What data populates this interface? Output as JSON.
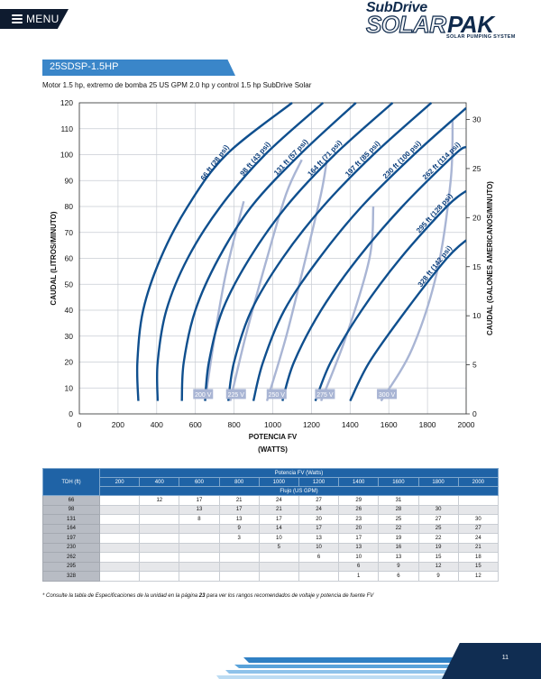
{
  "nav": {
    "menu_label": "MENU"
  },
  "brand": {
    "top": "SubDrive",
    "solar": "SOLAR",
    "pak": "PAK",
    "tagline": "SOLAR PUMPING SYSTEM"
  },
  "header": {
    "model": "25SDSP-1.5HP",
    "subtitle": "Motor 1.5 hp, extremo de bomba 25 US GPM 2.0 hp y control 1.5 hp SubDrive Solar"
  },
  "chart_data": {
    "type": "line",
    "xlabel_line1": "POTENCIA FV",
    "xlabel_line2": "(WATTS)",
    "ylabel": "CAUDAL (LITROS/MINUTO)",
    "y2label": "CAUDAL (GALONES AMERICANOS/MINUTO)",
    "xlim": [
      0,
      2000
    ],
    "ylim": [
      0,
      120
    ],
    "y2lim": [
      0,
      31.7
    ],
    "xticks": [
      "0",
      "200",
      "400",
      "600",
      "800",
      "1000",
      "1200",
      "1400",
      "1600",
      "1800",
      "2000"
    ],
    "yticks": [
      "0",
      "10",
      "20",
      "30",
      "40",
      "50",
      "60",
      "70",
      "80",
      "90",
      "100",
      "110",
      "120"
    ],
    "y2ticks": [
      "0",
      "5",
      "10",
      "15",
      "20",
      "25",
      "30"
    ],
    "series": [
      {
        "name": "66 ft (28 psi)",
        "points": [
          [
            305,
            5
          ],
          [
            300,
            20
          ],
          [
            330,
            40
          ],
          [
            420,
            60
          ],
          [
            560,
            80
          ],
          [
            760,
            100
          ],
          [
            1100,
            120
          ]
        ]
      },
      {
        "name": "98 ft (43 psi)",
        "points": [
          [
            405,
            5
          ],
          [
            405,
            20
          ],
          [
            450,
            40
          ],
          [
            560,
            60
          ],
          [
            730,
            80
          ],
          [
            960,
            100
          ],
          [
            1260,
            120
          ]
        ]
      },
      {
        "name": "131 ft (57 psi)",
        "points": [
          [
            530,
            5
          ],
          [
            540,
            20
          ],
          [
            600,
            40
          ],
          [
            720,
            60
          ],
          [
            890,
            80
          ],
          [
            1140,
            100
          ],
          [
            1430,
            120
          ]
        ]
      },
      {
        "name": "164 ft (71 psi)",
        "points": [
          [
            650,
            5
          ],
          [
            670,
            20
          ],
          [
            740,
            40
          ],
          [
            880,
            60
          ],
          [
            1070,
            80
          ],
          [
            1320,
            100
          ],
          [
            1620,
            120
          ]
        ]
      },
      {
        "name": "197 ft (85 psi)",
        "points": [
          [
            770,
            5
          ],
          [
            800,
            20
          ],
          [
            890,
            40
          ],
          [
            1050,
            60
          ],
          [
            1260,
            80
          ],
          [
            1520,
            100
          ],
          [
            1820,
            120
          ]
        ]
      },
      {
        "name": "230 ft (100 psi)",
        "points": [
          [
            900,
            5
          ],
          [
            950,
            20
          ],
          [
            1060,
            40
          ],
          [
            1240,
            60
          ],
          [
            1460,
            80
          ],
          [
            1730,
            100
          ],
          [
            2000,
            118
          ]
        ]
      },
      {
        "name": "262 ft (114 psi)",
        "points": [
          [
            1050,
            5
          ],
          [
            1110,
            20
          ],
          [
            1250,
            40
          ],
          [
            1440,
            60
          ],
          [
            1670,
            80
          ],
          [
            1940,
            100
          ],
          [
            2000,
            103
          ]
        ]
      },
      {
        "name": "295 ft (128 psi)",
        "points": [
          [
            1220,
            5
          ],
          [
            1300,
            20
          ],
          [
            1460,
            40
          ],
          [
            1660,
            60
          ],
          [
            1900,
            80
          ],
          [
            2000,
            86
          ]
        ]
      },
      {
        "name": "328 ft (142 psi)",
        "points": [
          [
            1400,
            5
          ],
          [
            1500,
            20
          ],
          [
            1690,
            40
          ],
          [
            1900,
            60
          ],
          [
            2000,
            67
          ]
        ]
      }
    ],
    "voltage_series": [
      {
        "name": "200 V",
        "points": [
          [
            650,
            5
          ],
          [
            700,
            30
          ],
          [
            760,
            55
          ],
          [
            850,
            82
          ]
        ]
      },
      {
        "name": "225 V",
        "points": [
          [
            780,
            5
          ],
          [
            860,
            30
          ],
          [
            970,
            60
          ],
          [
            1070,
            85
          ],
          [
            1150,
            98
          ]
        ]
      },
      {
        "name": "250 V",
        "points": [
          [
            970,
            5
          ],
          [
            1070,
            30
          ],
          [
            1170,
            60
          ],
          [
            1250,
            85
          ],
          [
            1280,
            98
          ]
        ]
      },
      {
        "name": "275 V",
        "points": [
          [
            1250,
            5
          ],
          [
            1380,
            30
          ],
          [
            1500,
            60
          ],
          [
            1520,
            80
          ]
        ]
      },
      {
        "name": "300 V",
        "points": [
          [
            1560,
            5
          ],
          [
            1720,
            25
          ],
          [
            1850,
            55
          ],
          [
            1920,
            90
          ],
          [
            1930,
            113
          ]
        ]
      }
    ],
    "voltage_label_positions_watts": [
      640,
      810,
      1020,
      1270,
      1590
    ]
  },
  "table": {
    "group_header": "Potencia FV (Watts)",
    "row_label_header": "TDH (ft)",
    "flow_header": "Flujo (US GPM)",
    "columns": [
      "200",
      "400",
      "600",
      "800",
      "1000",
      "1200",
      "1400",
      "1600",
      "1800",
      "2000"
    ],
    "rows": [
      {
        "tdh": "66",
        "values": [
          "",
          "12",
          "17",
          "21",
          "24",
          "27",
          "29",
          "31",
          "",
          ""
        ]
      },
      {
        "tdh": "98",
        "values": [
          "",
          "",
          "13",
          "17",
          "21",
          "24",
          "26",
          "28",
          "30",
          ""
        ]
      },
      {
        "tdh": "131",
        "values": [
          "",
          "",
          "8",
          "13",
          "17",
          "20",
          "23",
          "25",
          "27",
          "30"
        ]
      },
      {
        "tdh": "164",
        "values": [
          "",
          "",
          "",
          "9",
          "14",
          "17",
          "20",
          "22",
          "25",
          "27"
        ]
      },
      {
        "tdh": "197",
        "values": [
          "",
          "",
          "",
          "3",
          "10",
          "13",
          "17",
          "19",
          "22",
          "24"
        ]
      },
      {
        "tdh": "230",
        "values": [
          "",
          "",
          "",
          "",
          "5",
          "10",
          "13",
          "16",
          "19",
          "21"
        ]
      },
      {
        "tdh": "262",
        "values": [
          "",
          "",
          "",
          "",
          "",
          "6",
          "10",
          "13",
          "15",
          "18"
        ]
      },
      {
        "tdh": "295",
        "values": [
          "",
          "",
          "",
          "",
          "",
          "",
          "6",
          "9",
          "12",
          "15"
        ]
      },
      {
        "tdh": "328",
        "values": [
          "",
          "",
          "",
          "",
          "",
          "",
          "1",
          "6",
          "9",
          "12"
        ]
      }
    ]
  },
  "footnote": {
    "before": "* Consulte la tabla de Especificaciones de la unidad en la página ",
    "page": "23",
    "after": " para ver los rangos recomendados de voltaje y potencia de fuente FV"
  },
  "footer": {
    "page_number": "11"
  }
}
